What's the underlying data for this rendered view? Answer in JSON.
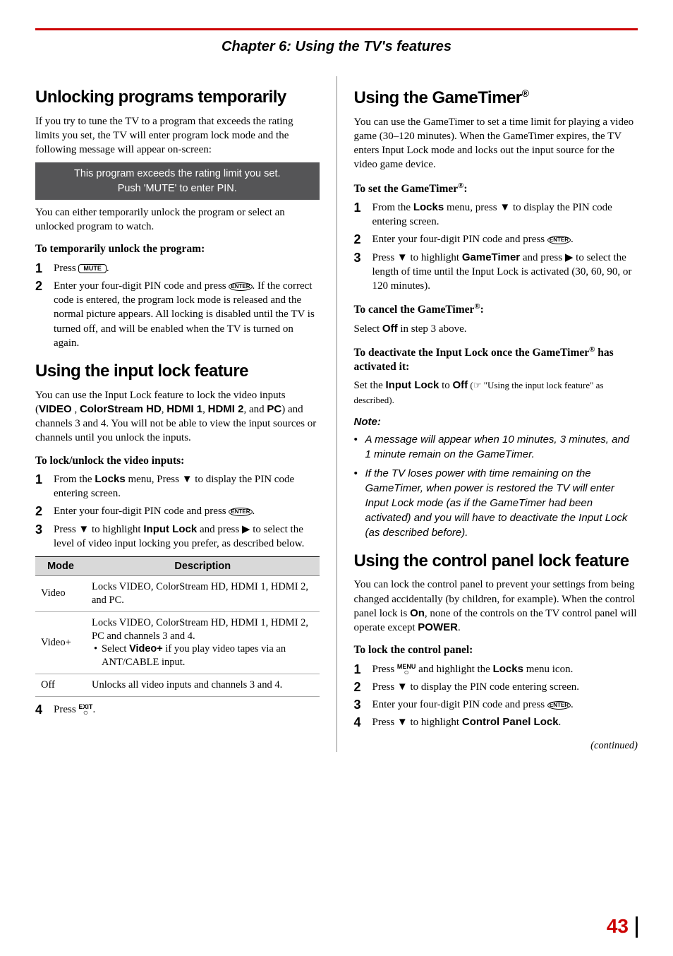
{
  "chapter_title": "Chapter 6: Using the TV's features",
  "page_number": "43",
  "continued": "(continued)",
  "left": {
    "h1": "Unlocking programs temporarily",
    "p1": "If you try to tune the TV to a program that exceeds the rating limits you set, the TV will enter program lock mode and the following message will appear on-screen:",
    "osd_line1": "This program exceeds the rating limit you set.",
    "osd_line2": "Push 'MUTE' to enter PIN.",
    "p2": "You can either temporarily unlock the program or select an unlocked program to watch.",
    "sub1": "To temporarily unlock the program:",
    "step1_pre": "Press ",
    "step1_key": "MUTE",
    "step1_post": ".",
    "step2_pre": "Enter your four-digit PIN code and press ",
    "step2_key": "ENTER",
    "step2_post": ". If the correct code is entered, the program lock mode is released and the normal picture appears. All locking is disabled until the TV is turned off, and will be enabled when the TV is turned on again.",
    "h2": "Using the input lock feature",
    "p3a": "You can use the Input Lock feature to lock the video inputs (",
    "p3_video": "VIDEO",
    "p3_sep1": " , ",
    "p3_cs": "ColorStream HD",
    "p3_sep2": ",  ",
    "p3_h1": "HDMI 1",
    "p3_sep3": ", ",
    "p3_h2": "HDMI 2",
    "p3_sep4": ", and ",
    "p3_pc": "PC",
    "p3b": ") and channels 3 and 4. You will not be able to view the input sources or channels until you unlock the inputs.",
    "sub2": "To lock/unlock the video inputs:",
    "s2_1a": "From the ",
    "s2_1_locks": "Locks",
    "s2_1b": " menu, Press ▼ to display the PIN code entering screen.",
    "s2_2a": "Enter your four-digit PIN code and press ",
    "s2_2_key": "ENTER",
    "s2_2b": ".",
    "s2_3a": "Press ▼ to highlight ",
    "s2_3_il": "Input Lock",
    "s2_3b": " and press ▶ to select the level of video input locking you prefer, as described below.",
    "table": {
      "col1": "Mode",
      "col2": "Description",
      "r1c1": "Video",
      "r1c2": "Locks VIDEO, ColorStream HD, HDMI 1, HDMI 2, and PC.",
      "r2c1": "Video+",
      "r2c2a": "Locks VIDEO, ColorStream HD, HDMI 1, HDMI 2, PC and channels 3 and 4.",
      "r2c2b_pre": "Select ",
      "r2c2b_bold": "Video+",
      "r2c2b_post": " if you play video tapes via an ANT/CABLE input.",
      "r3c1": "Off",
      "r3c2": "Unlocks all video inputs and channels 3 and 4."
    },
    "s2_4a": "Press ",
    "s2_4_key": "EXIT",
    "s2_4b": "."
  },
  "right": {
    "h1a": "Using the GameTimer",
    "h1sup": "®",
    "p1": "You can use the GameTimer to set a time limit for playing a video game (30–120 minutes). When the GameTimer expires, the TV enters Input Lock mode and locks out the input source for the video game device.",
    "sub1a": "To set the GameTimer",
    "sub1sup": "®",
    "sub1b": ":",
    "s1_1a": "From the ",
    "s1_1_locks": "Locks",
    "s1_1b": " menu, press ▼ to display the PIN code entering screen.",
    "s1_2a": "Enter your four-digit PIN code and press ",
    "s1_2_key": "ENTER",
    "s1_2b": ".",
    "s1_3a": "Press ▼ to highlight ",
    "s1_3_gt": "GameTimer",
    "s1_3b": " and press ▶ to select the length of time until the Input Lock is activated (30, 60, 90, or 120 minutes).",
    "sub2a": "To cancel the GameTimer",
    "sub2sup": "®",
    "sub2b": ":",
    "p2a": "Select ",
    "p2_off": "Off",
    "p2b": " in step 3 above.",
    "sub3a": "To deactivate the Input Lock once the GameTimer",
    "sub3sup": "®",
    "sub3b": " has activated it:",
    "p3a": "Set the ",
    "p3_il": "Input Lock",
    "p3b": " to ",
    "p3_off": "Off",
    "p3c": " (☞ \"Using the input lock feature\" as described).",
    "note_head": "Note:",
    "note1": "A message will appear when 10 minutes, 3 minutes, and 1 minute remain on the GameTimer.",
    "note2": "If the TV loses power with time remaining on the GameTimer, when power is restored the TV will enter Input Lock mode (as if the GameTimer had been activated) and you will have to deactivate the Input Lock (as described before).",
    "h2": "Using the control panel lock feature",
    "p4a": "You can lock the control panel to prevent your settings from being changed accidentally (by children, for example). When the control panel lock is ",
    "p4_on": "On",
    "p4b": ", none of the controls on the TV control panel will operate except ",
    "p4_power": "POWER",
    "p4c": ".",
    "sub4": "To lock the control panel:",
    "s4_1a": "Press ",
    "s4_1_key": "MENU",
    "s4_1b": " and highlight the ",
    "s4_1_locks": "Locks",
    "s4_1c": " menu icon.",
    "s4_2": "Press ▼ to display the PIN code entering screen.",
    "s4_3a": "Enter your four-digit PIN code and press ",
    "s4_3_key": "ENTER",
    "s4_3b": ".",
    "s4_4a": "Press ▼ to highlight ",
    "s4_4_cpl": "Control Panel Lock",
    "s4_4b": "."
  }
}
